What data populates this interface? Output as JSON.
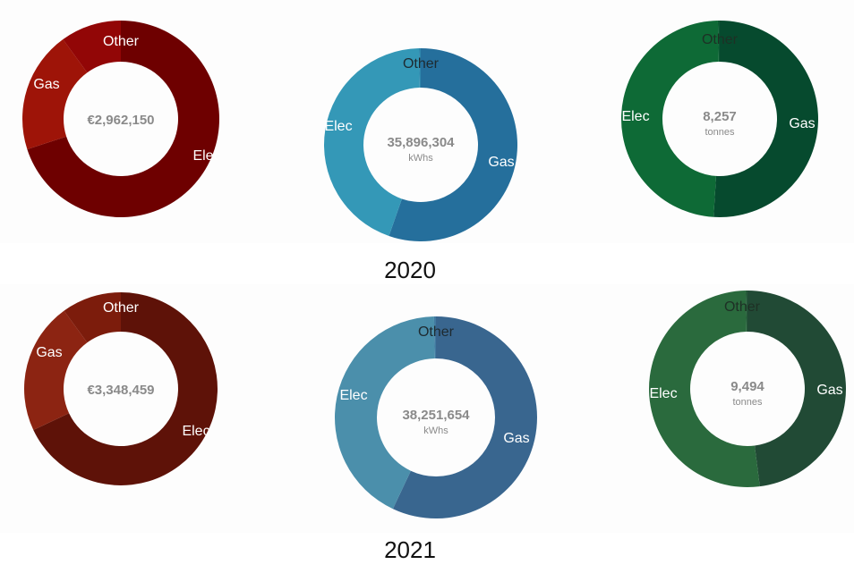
{
  "years": [
    "2020",
    "2021"
  ],
  "chart_data": [
    {
      "type": "pie",
      "year": "2020",
      "center_value": "€2,962,150",
      "center_unit": "",
      "categories": [
        "Elec",
        "Gas",
        "Other"
      ],
      "values": [
        70,
        20,
        10
      ],
      "colors": [
        "#6e0000",
        "#9e1408",
        "#920606"
      ],
      "label_colors": [
        "#ffffff",
        "#ffffff",
        "#ffffff"
      ]
    },
    {
      "type": "pie",
      "year": "2020",
      "center_value": "35,896,304",
      "center_unit": "kWhs",
      "categories": [
        "Gas",
        "Elec",
        "Other"
      ],
      "values": [
        55.5,
        44.5,
        0.3
      ],
      "colors": [
        "#256f9c",
        "#3498b7",
        "#2e87ad"
      ],
      "label_colors": [
        "#ffffff",
        "#ffffff",
        "#1e2a30"
      ]
    },
    {
      "type": "pie",
      "year": "2020",
      "center_value": "8,257",
      "center_unit": "tonnes",
      "categories": [
        "Gas",
        "Elec",
        "Other"
      ],
      "values": [
        51,
        48.7,
        0.3
      ],
      "colors": [
        "#064a2e",
        "#0e6a36",
        "#0a5a32"
      ],
      "label_colors": [
        "#ffffff",
        "#ffffff",
        "#1e3025"
      ]
    },
    {
      "type": "pie",
      "year": "2021",
      "center_value": "€3,348,459",
      "center_unit": "",
      "categories": [
        "Elec",
        "Gas",
        "Other"
      ],
      "values": [
        68,
        22,
        10
      ],
      "colors": [
        "#5e1208",
        "#8c2412",
        "#7c1c0c"
      ],
      "label_colors": [
        "#ffffff",
        "#ffffff",
        "#ffffff"
      ]
    },
    {
      "type": "pie",
      "year": "2021",
      "center_value": "38,251,654",
      "center_unit": "kWhs",
      "categories": [
        "Gas",
        "Elec",
        "Other"
      ],
      "values": [
        57,
        42.7,
        0.3
      ],
      "colors": [
        "#39668f",
        "#4b8fab",
        "#427aa0"
      ],
      "label_colors": [
        "#ffffff",
        "#ffffff",
        "#1e2a30"
      ]
    },
    {
      "type": "pie",
      "year": "2021",
      "center_value": "9,494",
      "center_unit": "tonnes",
      "categories": [
        "Gas",
        "Elec",
        "Other"
      ],
      "values": [
        48,
        51.7,
        0.3
      ],
      "colors": [
        "#214a35",
        "#2a6a3d",
        "#255a39"
      ],
      "label_colors": [
        "#ffffff",
        "#ffffff",
        "#1e3025"
      ]
    }
  ]
}
